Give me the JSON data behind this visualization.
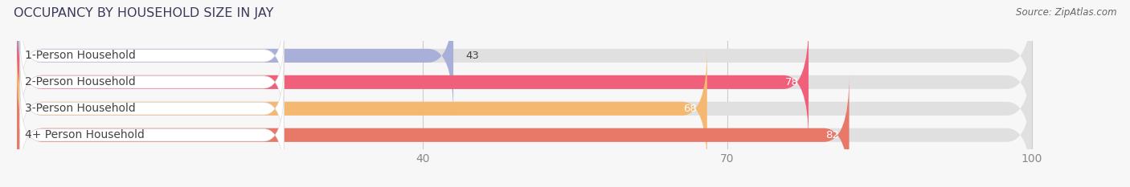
{
  "title": "OCCUPANCY BY HOUSEHOLD SIZE IN JAY",
  "source": "Source: ZipAtlas.com",
  "categories": [
    "1-Person Household",
    "2-Person Household",
    "3-Person Household",
    "4+ Person Household"
  ],
  "values": [
    43,
    78,
    68,
    82
  ],
  "bar_colors": [
    "#a8afd8",
    "#f0607a",
    "#f5b870",
    "#e87868"
  ],
  "bar_bg_color": "#e0e0e0",
  "xlim": [
    0,
    108
  ],
  "data_max": 100,
  "xticks": [
    40,
    70,
    100
  ],
  "bar_height": 0.52,
  "title_fontsize": 11.5,
  "label_fontsize": 10,
  "value_fontsize": 9.5,
  "source_fontsize": 8.5,
  "bg_color": "#f7f7f7",
  "text_color_dark": "#444444",
  "text_color_white": "#ffffff",
  "label_box_color": "#ffffff",
  "tick_color": "#888888",
  "grid_color": "#cccccc"
}
